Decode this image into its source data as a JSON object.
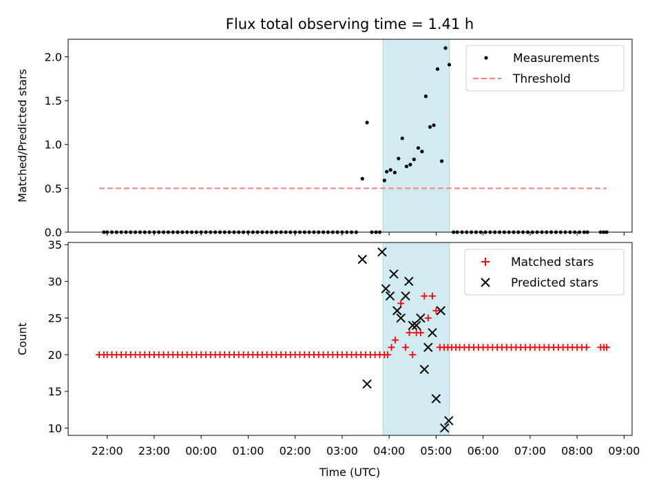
{
  "chart_data": [
    {
      "type": "scatter",
      "title": "Flux total observing time = 1.41 h",
      "ylabel": "Matched/Predicted stars",
      "xlabel": "",
      "x_unit": "hours (time of day, UTC; values past 24 wrap to next day)",
      "xlim": [
        21.17,
        33.17
      ],
      "ylim": [
        0,
        2.2
      ],
      "yticks": [
        "0.0",
        "0.5",
        "1.0",
        "1.5",
        "2.0"
      ],
      "yticks_values": [
        0,
        0.5,
        1.0,
        1.5,
        2.0
      ],
      "shaded_region": {
        "x": [
          27.87,
          29.28
        ],
        "color": "#add8e6"
      },
      "legend": {
        "position": "top-right",
        "entries": [
          {
            "label": "Measurements",
            "marker": "dot",
            "color": "#000000"
          },
          {
            "label": "Threshold",
            "marker": "dashed-line",
            "color": "#ff7f7f"
          }
        ]
      },
      "series": [
        {
          "name": "Measurements",
          "color": "#000000",
          "points": [
            [
              21.93,
              0
            ],
            [
              22.0,
              0
            ],
            [
              22.1,
              0
            ],
            [
              22.2,
              0
            ],
            [
              22.3,
              0
            ],
            [
              22.4,
              0
            ],
            [
              22.5,
              0
            ],
            [
              22.6,
              0
            ],
            [
              22.7,
              0
            ],
            [
              22.8,
              0
            ],
            [
              22.9,
              0
            ],
            [
              23.0,
              0
            ],
            [
              23.1,
              0
            ],
            [
              23.2,
              0
            ],
            [
              23.3,
              0
            ],
            [
              23.4,
              0
            ],
            [
              23.5,
              0
            ],
            [
              23.6,
              0
            ],
            [
              23.7,
              0
            ],
            [
              23.8,
              0
            ],
            [
              23.9,
              0
            ],
            [
              24.0,
              0
            ],
            [
              24.1,
              0
            ],
            [
              24.2,
              0
            ],
            [
              24.3,
              0
            ],
            [
              24.4,
              0
            ],
            [
              24.5,
              0
            ],
            [
              24.6,
              0
            ],
            [
              24.7,
              0
            ],
            [
              24.8,
              0
            ],
            [
              24.9,
              0
            ],
            [
              25.0,
              0
            ],
            [
              25.1,
              0
            ],
            [
              25.2,
              0
            ],
            [
              25.3,
              0
            ],
            [
              25.4,
              0
            ],
            [
              25.5,
              0
            ],
            [
              25.6,
              0
            ],
            [
              25.7,
              0
            ],
            [
              25.8,
              0
            ],
            [
              25.9,
              0
            ],
            [
              26.0,
              0
            ],
            [
              26.1,
              0
            ],
            [
              26.2,
              0
            ],
            [
              26.3,
              0
            ],
            [
              26.4,
              0
            ],
            [
              26.5,
              0
            ],
            [
              26.6,
              0
            ],
            [
              26.7,
              0
            ],
            [
              26.8,
              0
            ],
            [
              26.9,
              0
            ],
            [
              27.0,
              0
            ],
            [
              27.1,
              0
            ],
            [
              27.2,
              0
            ],
            [
              27.3,
              0
            ],
            [
              27.43,
              0.61
            ],
            [
              27.53,
              1.25
            ],
            [
              27.63,
              0
            ],
            [
              27.72,
              0
            ],
            [
              27.8,
              0
            ],
            [
              27.9,
              0.59
            ],
            [
              27.95,
              0.69
            ],
            [
              28.03,
              0.71
            ],
            [
              28.12,
              0.68
            ],
            [
              28.2,
              0.84
            ],
            [
              28.28,
              1.07
            ],
            [
              28.37,
              0.75
            ],
            [
              28.45,
              0.77
            ],
            [
              28.53,
              0.83
            ],
            [
              28.62,
              0.96
            ],
            [
              28.7,
              0.92
            ],
            [
              28.78,
              1.55
            ],
            [
              28.87,
              1.2
            ],
            [
              28.95,
              1.22
            ],
            [
              29.03,
              1.86
            ],
            [
              29.12,
              0.81
            ],
            [
              29.2,
              2.1
            ],
            [
              29.28,
              1.91
            ],
            [
              29.37,
              0
            ],
            [
              29.45,
              0
            ],
            [
              29.55,
              0
            ],
            [
              29.65,
              0
            ],
            [
              29.75,
              0
            ],
            [
              29.85,
              0
            ],
            [
              29.95,
              0
            ],
            [
              30.05,
              0
            ],
            [
              30.15,
              0
            ],
            [
              30.25,
              0
            ],
            [
              30.35,
              0
            ],
            [
              30.45,
              0
            ],
            [
              30.55,
              0
            ],
            [
              30.65,
              0
            ],
            [
              30.75,
              0
            ],
            [
              30.85,
              0
            ],
            [
              30.95,
              0
            ],
            [
              31.05,
              0
            ],
            [
              31.15,
              0
            ],
            [
              31.25,
              0
            ],
            [
              31.35,
              0
            ],
            [
              31.45,
              0
            ],
            [
              31.55,
              0
            ],
            [
              31.65,
              0
            ],
            [
              31.75,
              0
            ],
            [
              31.85,
              0
            ],
            [
              31.95,
              0
            ],
            [
              32.05,
              0
            ],
            [
              32.15,
              0
            ],
            [
              32.22,
              0
            ],
            [
              32.5,
              0
            ],
            [
              32.57,
              0
            ],
            [
              32.63,
              0
            ]
          ]
        },
        {
          "name": "Threshold",
          "color": "#ff7f7f",
          "style": "dashed",
          "points": [
            [
              21.83,
              0.5
            ],
            [
              32.63,
              0.5
            ]
          ]
        }
      ]
    },
    {
      "type": "scatter",
      "title": "",
      "ylabel": "Count",
      "xlabel": "Time (UTC)",
      "x_unit": "hours (time of day, UTC; values past 24 wrap to next day)",
      "xlim": [
        21.17,
        33.17
      ],
      "ylim": [
        9,
        35.3
      ],
      "yticks": [
        "10",
        "15",
        "20",
        "25",
        "30",
        "35"
      ],
      "yticks_values": [
        10,
        15,
        20,
        25,
        30,
        35
      ],
      "xticks": [
        "22:00",
        "23:00",
        "00:00",
        "01:00",
        "02:00",
        "03:00",
        "04:00",
        "05:00",
        "06:00",
        "07:00",
        "08:00",
        "09:00"
      ],
      "xticks_values": [
        22,
        23,
        24,
        25,
        26,
        27,
        28,
        29,
        30,
        31,
        32,
        33
      ],
      "shaded_region": {
        "x": [
          27.87,
          29.28
        ],
        "color": "#add8e6"
      },
      "legend": {
        "position": "top-right",
        "entries": [
          {
            "label": "Matched stars",
            "marker": "plus",
            "color": "#ff0000"
          },
          {
            "label": "Predicted stars",
            "marker": "x",
            "color": "#000000"
          }
        ]
      },
      "series": [
        {
          "name": "Matched stars",
          "color": "#ff0000",
          "points": [
            [
              21.83,
              20
            ],
            [
              21.93,
              20
            ],
            [
              22.0,
              20
            ],
            [
              22.1,
              20
            ],
            [
              22.2,
              20
            ],
            [
              22.3,
              20
            ],
            [
              22.4,
              20
            ],
            [
              22.5,
              20
            ],
            [
              22.6,
              20
            ],
            [
              22.7,
              20
            ],
            [
              22.8,
              20
            ],
            [
              22.9,
              20
            ],
            [
              23.0,
              20
            ],
            [
              23.1,
              20
            ],
            [
              23.2,
              20
            ],
            [
              23.3,
              20
            ],
            [
              23.4,
              20
            ],
            [
              23.5,
              20
            ],
            [
              23.6,
              20
            ],
            [
              23.7,
              20
            ],
            [
              23.8,
              20
            ],
            [
              23.9,
              20
            ],
            [
              24.0,
              20
            ],
            [
              24.1,
              20
            ],
            [
              24.2,
              20
            ],
            [
              24.3,
              20
            ],
            [
              24.4,
              20
            ],
            [
              24.5,
              20
            ],
            [
              24.6,
              20
            ],
            [
              24.7,
              20
            ],
            [
              24.8,
              20
            ],
            [
              24.9,
              20
            ],
            [
              25.0,
              20
            ],
            [
              25.1,
              20
            ],
            [
              25.2,
              20
            ],
            [
              25.3,
              20
            ],
            [
              25.4,
              20
            ],
            [
              25.5,
              20
            ],
            [
              25.6,
              20
            ],
            [
              25.7,
              20
            ],
            [
              25.8,
              20
            ],
            [
              25.9,
              20
            ],
            [
              26.0,
              20
            ],
            [
              26.1,
              20
            ],
            [
              26.2,
              20
            ],
            [
              26.3,
              20
            ],
            [
              26.4,
              20
            ],
            [
              26.5,
              20
            ],
            [
              26.6,
              20
            ],
            [
              26.7,
              20
            ],
            [
              26.8,
              20
            ],
            [
              26.9,
              20
            ],
            [
              27.0,
              20
            ],
            [
              27.1,
              20
            ],
            [
              27.2,
              20
            ],
            [
              27.3,
              20
            ],
            [
              27.4,
              20
            ],
            [
              27.5,
              20
            ],
            [
              27.6,
              20
            ],
            [
              27.7,
              20
            ],
            [
              27.8,
              20
            ],
            [
              27.9,
              20
            ],
            [
              27.97,
              20
            ],
            [
              28.05,
              21
            ],
            [
              28.13,
              22
            ],
            [
              28.25,
              27
            ],
            [
              28.35,
              21
            ],
            [
              28.43,
              23
            ],
            [
              28.5,
              20
            ],
            [
              28.58,
              23
            ],
            [
              28.67,
              23
            ],
            [
              28.75,
              28
            ],
            [
              28.83,
              25
            ],
            [
              28.92,
              28
            ],
            [
              29.0,
              26
            ],
            [
              29.08,
              21
            ],
            [
              29.17,
              21
            ],
            [
              29.25,
              21
            ],
            [
              29.33,
              21
            ],
            [
              29.42,
              21
            ],
            [
              29.5,
              21
            ],
            [
              29.6,
              21
            ],
            [
              29.7,
              21
            ],
            [
              29.8,
              21
            ],
            [
              29.9,
              21
            ],
            [
              30.0,
              21
            ],
            [
              30.1,
              21
            ],
            [
              30.2,
              21
            ],
            [
              30.3,
              21
            ],
            [
              30.4,
              21
            ],
            [
              30.5,
              21
            ],
            [
              30.6,
              21
            ],
            [
              30.7,
              21
            ],
            [
              30.8,
              21
            ],
            [
              30.9,
              21
            ],
            [
              31.0,
              21
            ],
            [
              31.1,
              21
            ],
            [
              31.2,
              21
            ],
            [
              31.3,
              21
            ],
            [
              31.4,
              21
            ],
            [
              31.5,
              21
            ],
            [
              31.6,
              21
            ],
            [
              31.7,
              21
            ],
            [
              31.8,
              21
            ],
            [
              31.9,
              21
            ],
            [
              32.0,
              21
            ],
            [
              32.1,
              21
            ],
            [
              32.2,
              21
            ],
            [
              32.5,
              21
            ],
            [
              32.57,
              21
            ],
            [
              32.63,
              21
            ]
          ]
        },
        {
          "name": "Predicted stars",
          "color": "#000000",
          "points": [
            [
              27.43,
              33
            ],
            [
              27.53,
              16
            ],
            [
              27.85,
              34
            ],
            [
              27.93,
              29
            ],
            [
              28.02,
              28
            ],
            [
              28.1,
              31
            ],
            [
              28.17,
              26
            ],
            [
              28.25,
              25
            ],
            [
              28.35,
              28
            ],
            [
              28.42,
              30
            ],
            [
              28.5,
              24
            ],
            [
              28.58,
              24
            ],
            [
              28.67,
              25
            ],
            [
              28.75,
              18
            ],
            [
              28.83,
              21
            ],
            [
              28.92,
              23
            ],
            [
              29.0,
              14
            ],
            [
              29.1,
              26
            ],
            [
              29.18,
              10
            ],
            [
              29.27,
              11
            ]
          ]
        }
      ]
    }
  ]
}
